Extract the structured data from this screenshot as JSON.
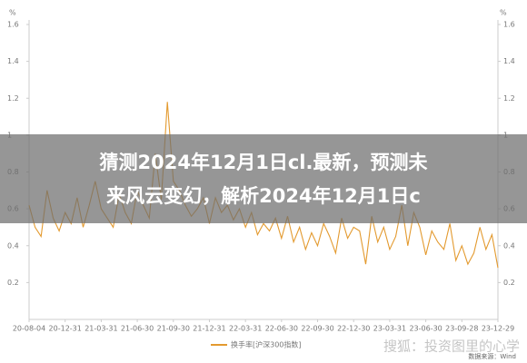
{
  "chart_data": {
    "type": "line",
    "y_unit": "%",
    "y2_unit": "%",
    "categories": [
      "20-08-04",
      null,
      null,
      null,
      null,
      null,
      "20-12-31",
      null,
      null,
      null,
      null,
      null,
      "21-03-31",
      null,
      null,
      null,
      null,
      null,
      "21-06-30",
      null,
      null,
      null,
      null,
      null,
      "21-09-30",
      null,
      null,
      null,
      null,
      null,
      "21-12-31",
      null,
      null,
      null,
      null,
      null,
      "22-03-31",
      null,
      null,
      null,
      null,
      null,
      "22-06-30",
      null,
      null,
      null,
      null,
      null,
      "22-09-30",
      null,
      null,
      null,
      null,
      null,
      "22-12-30",
      null,
      null,
      null,
      null,
      null,
      "23-03-31",
      null,
      null,
      null,
      null,
      null,
      "23-06-30",
      null,
      null,
      null,
      null,
      null,
      "23-09-28",
      null,
      null,
      null,
      null,
      null,
      "23-12-29"
    ],
    "series": [
      {
        "name": "换手率[沪深300指数]",
        "color": "#e39a2f",
        "values": [
          0.62,
          0.5,
          0.45,
          0.7,
          0.55,
          0.48,
          0.58,
          0.52,
          0.66,
          0.5,
          0.62,
          0.75,
          0.6,
          0.55,
          0.5,
          0.68,
          0.58,
          0.52,
          0.7,
          0.62,
          0.55,
          0.9,
          0.65,
          1.18,
          0.75,
          0.7,
          0.62,
          0.56,
          0.6,
          0.66,
          0.52,
          0.66,
          0.58,
          0.62,
          0.54,
          0.6,
          0.5,
          0.58,
          0.46,
          0.52,
          0.48,
          0.55,
          0.44,
          0.56,
          0.42,
          0.5,
          0.38,
          0.47,
          0.4,
          0.52,
          0.45,
          0.36,
          0.55,
          0.44,
          0.5,
          0.48,
          0.3,
          0.56,
          0.42,
          0.5,
          0.38,
          0.45,
          0.62,
          0.4,
          0.58,
          0.5,
          0.35,
          0.48,
          0.42,
          0.38,
          0.52,
          0.32,
          0.4,
          0.3,
          0.36,
          0.5,
          0.38,
          0.46,
          0.28
        ]
      }
    ],
    "ylim": [
      0,
      1.6
    ],
    "yticks": [
      0.2,
      0.4,
      0.6,
      0.8,
      1,
      1.2,
      1.4,
      1.6
    ],
    "y2lim": [
      0,
      1.6
    ],
    "y2ticks": [
      0.2,
      0.4,
      0.6,
      0.8,
      1,
      1.2,
      1.4,
      1.6
    ],
    "grid": false
  },
  "overlay": {
    "lines": [
      "猜测2024年12月1日cl.最新，预测未",
      "来风云变幻，解析2024年12月1日c"
    ]
  },
  "watermark": {
    "brand": "搜狐：投资图里的心学",
    "source": "数据来源：Wind"
  }
}
